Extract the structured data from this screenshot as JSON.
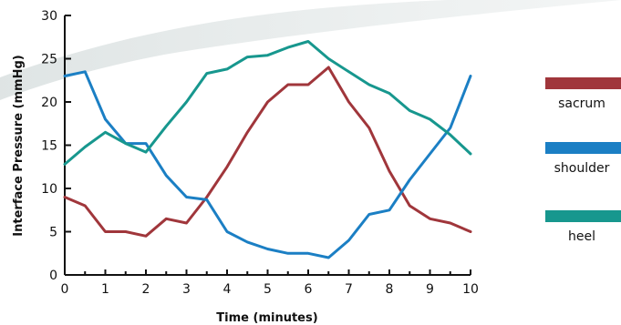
{
  "chart_data": {
    "type": "line",
    "title": "",
    "xlabel": "Time (minutes)",
    "ylabel": "Interface Pressure (mmHg)",
    "xlim": [
      0,
      10
    ],
    "ylim": [
      0,
      30
    ],
    "xticks": [
      "0",
      "1",
      "2",
      "3",
      "4",
      "5",
      "6",
      "7",
      "8",
      "9",
      "10"
    ],
    "yticks": [
      "0",
      "5",
      "10",
      "15",
      "20",
      "25",
      "30"
    ],
    "grid": false,
    "legend_position": "right",
    "series": [
      {
        "name": "sacrum",
        "color": "#a0363b",
        "x": [
          0,
          0.5,
          1,
          1.5,
          2,
          2.5,
          3,
          3.5,
          4,
          4.5,
          5,
          5.5,
          6,
          6.5,
          7,
          7.5,
          8,
          8.5,
          9,
          9.5,
          10
        ],
        "y": [
          9,
          8,
          5,
          5,
          4.5,
          6.5,
          6,
          9,
          12.5,
          16.5,
          20,
          22,
          22,
          24,
          20,
          17,
          12,
          8,
          6.5,
          6,
          5
        ]
      },
      {
        "name": "shoulder",
        "color": "#1b7fc4",
        "x": [
          0,
          0.5,
          1,
          1.5,
          2,
          2.5,
          3,
          3.5,
          4,
          4.5,
          5,
          5.5,
          6,
          6.5,
          7,
          7.5,
          8,
          8.5,
          9,
          9.5,
          10
        ],
        "y": [
          23,
          23.5,
          18,
          15.2,
          15.2,
          11.5,
          9,
          8.7,
          5,
          3.8,
          3,
          2.5,
          2.5,
          2,
          4,
          7,
          7.5,
          11,
          14,
          17,
          23
        ]
      },
      {
        "name": "heel",
        "color": "#17978e",
        "x": [
          0,
          0.5,
          1,
          1.5,
          2,
          2.5,
          3,
          3.5,
          4,
          4.5,
          5,
          5.5,
          6,
          6.5,
          7,
          7.5,
          8,
          8.5,
          9,
          9.5,
          10
        ],
        "y": [
          12.8,
          14.8,
          16.5,
          15.2,
          14.2,
          17.2,
          20,
          23.3,
          23.8,
          25.2,
          25.4,
          26.3,
          27,
          25,
          23.5,
          22,
          21,
          19,
          18,
          16.2,
          14
        ]
      }
    ]
  }
}
